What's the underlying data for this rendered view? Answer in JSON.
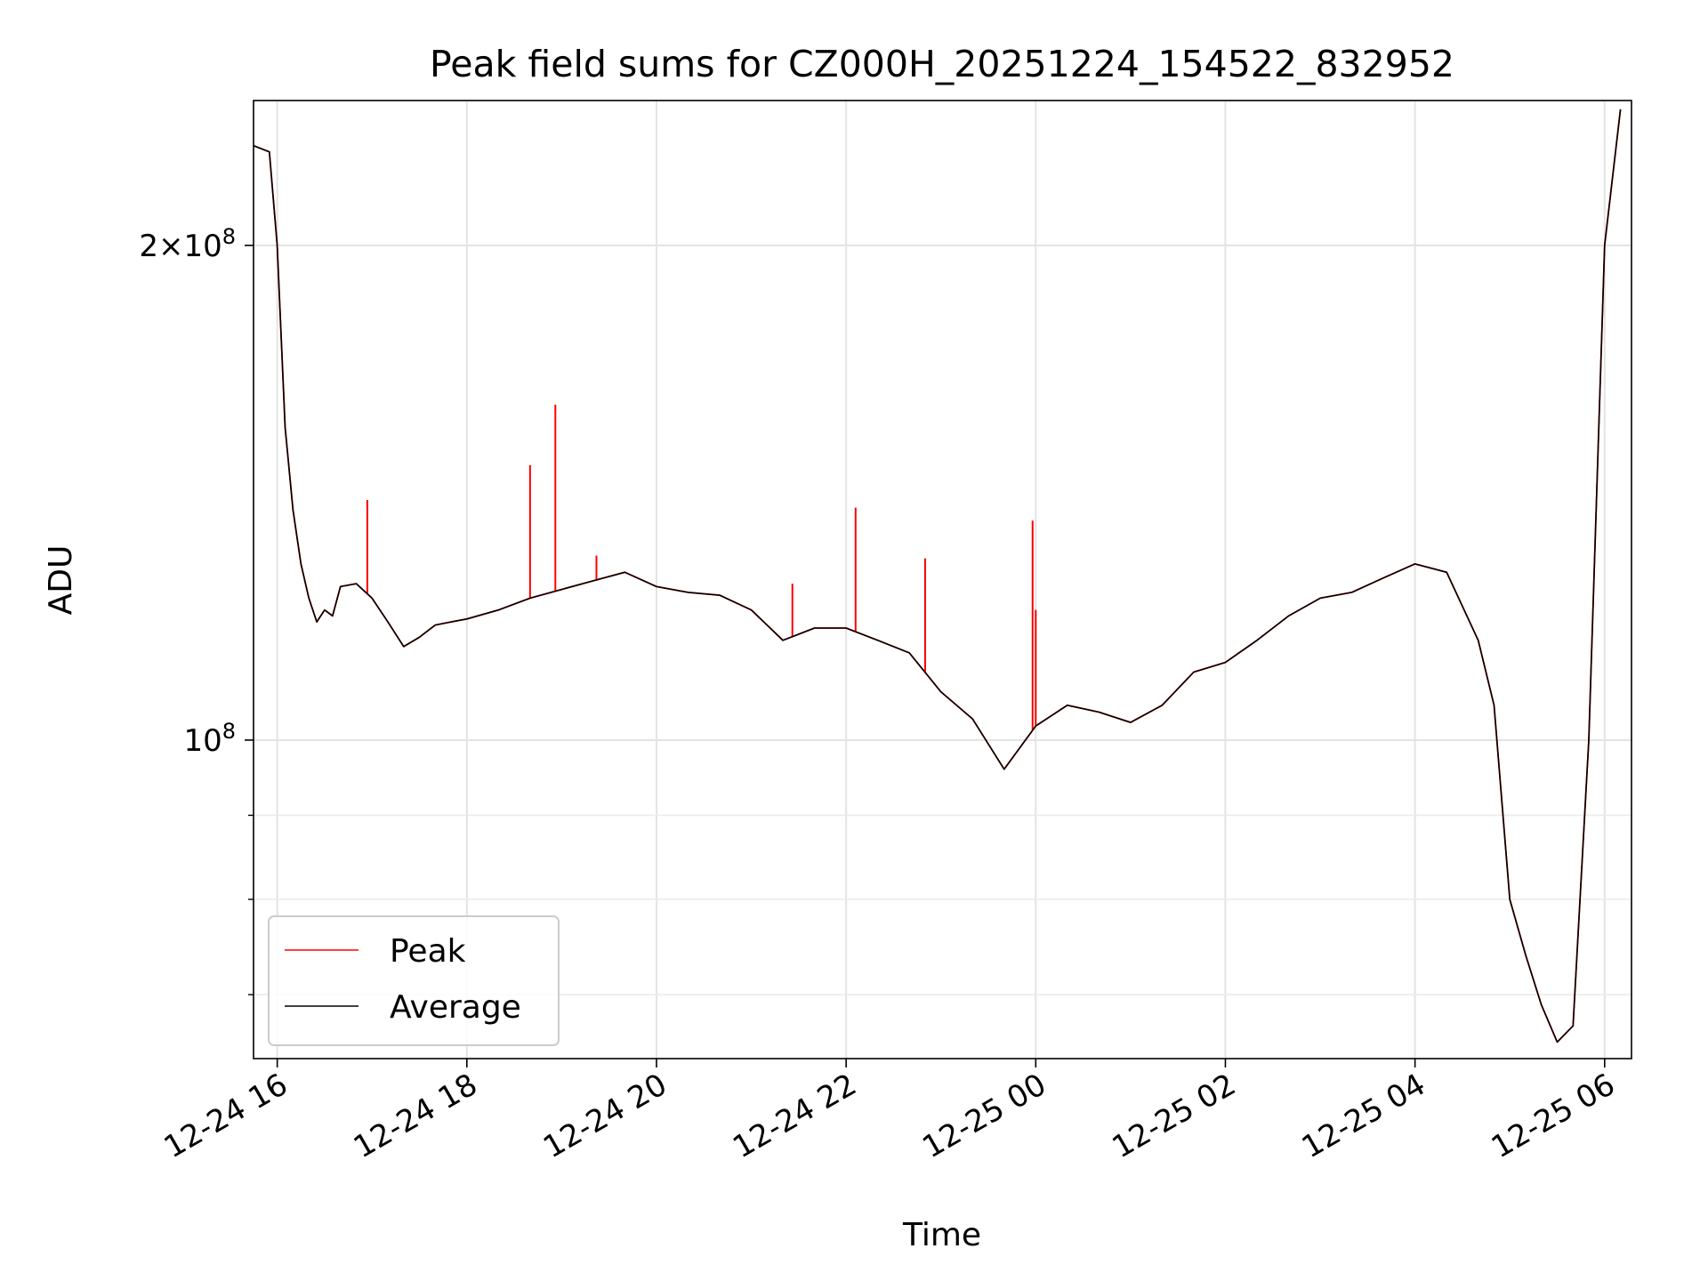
{
  "chart_data": {
    "type": "line",
    "title": "Peak field sums for CZ000H_20251224_154522_832952",
    "xlabel": "Time",
    "ylabel": "ADU",
    "y_scale": "log",
    "ylim": [
      64000000,
      245000000
    ],
    "xlim": [
      "2025-12-24 15:45",
      "2025-12-25 06:17"
    ],
    "grid": true,
    "legend_position": "lower-left",
    "x_ticks": [
      {
        "t": "2025-12-24 16:00",
        "label": "12-24 16"
      },
      {
        "t": "2025-12-24 18:00",
        "label": "12-24 18"
      },
      {
        "t": "2025-12-24 20:00",
        "label": "12-24 20"
      },
      {
        "t": "2025-12-24 22:00",
        "label": "12-24 22"
      },
      {
        "t": "2025-12-25 00:00",
        "label": "12-25 00"
      },
      {
        "t": "2025-12-25 02:00",
        "label": "12-25 02"
      },
      {
        "t": "2025-12-25 04:00",
        "label": "12-25 04"
      },
      {
        "t": "2025-12-25 06:00",
        "label": "12-25 06"
      }
    ],
    "y_ticks": [
      {
        "value": 100000000,
        "mantissa": "",
        "exponent": "8"
      },
      {
        "value": 200000000,
        "mantissa": "2",
        "exponent": "8"
      }
    ],
    "y_minor_ticks": [
      70000000,
      80000000,
      90000000
    ],
    "series": [
      {
        "name": "Peak",
        "color": "#ff0000",
        "data": [
          [
            "2025-12-24 15:45",
            230000000.0
          ],
          [
            "2025-12-24 15:55",
            228000000.0
          ],
          [
            "2025-12-24 16:00",
            200000000.0
          ],
          [
            "2025-12-24 16:05",
            155000000.0
          ],
          [
            "2025-12-24 16:10",
            138000000.0
          ],
          [
            "2025-12-24 16:15",
            128000000.0
          ],
          [
            "2025-12-24 16:20",
            122000000.0
          ],
          [
            "2025-12-24 16:25",
            118000000.0
          ],
          [
            "2025-12-24 16:30",
            120000000.0
          ],
          [
            "2025-12-24 16:35",
            119000000.0
          ],
          [
            "2025-12-24 16:40",
            124000000.0
          ],
          [
            "2025-12-24 16:50",
            124500000.0
          ],
          [
            "2025-12-24 17:00",
            122000000.0
          ],
          [
            "2025-12-24 17:10",
            118000000.0
          ],
          [
            "2025-12-24 17:20",
            114000000.0
          ],
          [
            "2025-12-24 17:30",
            115500000.0
          ],
          [
            "2025-12-24 17:40",
            117500000.0
          ],
          [
            "2025-12-24 17:50",
            118000000.0
          ],
          [
            "2025-12-24 18:00",
            118500000.0
          ],
          [
            "2025-12-24 18:20",
            120000000.0
          ],
          [
            "2025-12-24 18:40",
            122000000.0
          ],
          [
            "2025-12-24 19:00",
            123500000.0
          ],
          [
            "2025-12-24 19:20",
            125000000.0
          ],
          [
            "2025-12-24 19:40",
            126500000.0
          ],
          [
            "2025-12-24 20:00",
            124000000.0
          ],
          [
            "2025-12-24 20:20",
            123000000.0
          ],
          [
            "2025-12-24 20:40",
            122500000.0
          ],
          [
            "2025-12-24 21:00",
            120000000.0
          ],
          [
            "2025-12-24 21:20",
            115000000.0
          ],
          [
            "2025-12-24 21:40",
            117000000.0
          ],
          [
            "2025-12-24 22:00",
            117000000.0
          ],
          [
            "2025-12-24 22:20",
            115000000.0
          ],
          [
            "2025-12-24 22:40",
            113000000.0
          ],
          [
            "2025-12-24 23:00",
            107000000.0
          ],
          [
            "2025-12-24 23:20",
            103000000.0
          ],
          [
            "2025-12-24 23:40",
            96000000.0
          ],
          [
            "2025-12-25 00:00",
            102000000.0
          ],
          [
            "2025-12-25 00:20",
            105000000.0
          ],
          [
            "2025-12-25 00:40",
            104000000.0
          ],
          [
            "2025-12-25 01:00",
            102500000.0
          ],
          [
            "2025-12-25 01:20",
            105000000.0
          ],
          [
            "2025-12-25 01:40",
            110000000.0
          ],
          [
            "2025-12-25 02:00",
            111500000.0
          ],
          [
            "2025-12-25 02:20",
            115000000.0
          ],
          [
            "2025-12-25 02:40",
            119000000.0
          ],
          [
            "2025-12-25 03:00",
            122000000.0
          ],
          [
            "2025-12-25 03:20",
            123000000.0
          ],
          [
            "2025-12-25 03:40",
            125500000.0
          ],
          [
            "2025-12-25 04:00",
            128000000.0
          ],
          [
            "2025-12-25 04:20",
            126500000.0
          ],
          [
            "2025-12-25 04:40",
            115000000.0
          ],
          [
            "2025-12-25 04:50",
            105000000.0
          ],
          [
            "2025-12-25 05:00",
            80000000.0
          ],
          [
            "2025-12-25 05:10",
            74000000.0
          ],
          [
            "2025-12-25 05:20",
            69000000.0
          ],
          [
            "2025-12-25 05:30",
            65500000.0
          ],
          [
            "2025-12-25 05:40",
            67000000.0
          ],
          [
            "2025-12-25 05:50",
            100000000.0
          ],
          [
            "2025-12-25 06:00",
            200000000.0
          ],
          [
            "2025-12-25 06:10",
            242000000.0
          ]
        ],
        "spikes": [
          [
            "2025-12-24 16:57",
            140000000.0
          ],
          [
            "2025-12-24 18:40",
            147000000.0
          ],
          [
            "2025-12-24 18:56",
            160000000.0
          ],
          [
            "2025-12-24 19:22",
            129500000.0
          ],
          [
            "2025-12-24 21:26",
            124500000.0
          ],
          [
            "2025-12-24 22:06",
            138500000.0
          ],
          [
            "2025-12-24 22:50",
            129000000.0
          ],
          [
            "2025-12-24 23:58",
            136000000.0
          ],
          [
            "2025-12-25 00:00",
            120000000.0
          ]
        ]
      },
      {
        "name": "Average",
        "color": "#000000",
        "data": [
          [
            "2025-12-24 15:45",
            230000000.0
          ],
          [
            "2025-12-24 15:55",
            228000000.0
          ],
          [
            "2025-12-24 16:00",
            200000000.0
          ],
          [
            "2025-12-24 16:05",
            155000000.0
          ],
          [
            "2025-12-24 16:10",
            138000000.0
          ],
          [
            "2025-12-24 16:15",
            128000000.0
          ],
          [
            "2025-12-24 16:20",
            122000000.0
          ],
          [
            "2025-12-24 16:25",
            118000000.0
          ],
          [
            "2025-12-24 16:30",
            120000000.0
          ],
          [
            "2025-12-24 16:35",
            119000000.0
          ],
          [
            "2025-12-24 16:40",
            124000000.0
          ],
          [
            "2025-12-24 16:50",
            124500000.0
          ],
          [
            "2025-12-24 17:00",
            122000000.0
          ],
          [
            "2025-12-24 17:10",
            118000000.0
          ],
          [
            "2025-12-24 17:20",
            114000000.0
          ],
          [
            "2025-12-24 17:30",
            115500000.0
          ],
          [
            "2025-12-24 17:40",
            117500000.0
          ],
          [
            "2025-12-24 17:50",
            118000000.0
          ],
          [
            "2025-12-24 18:00",
            118500000.0
          ],
          [
            "2025-12-24 18:20",
            120000000.0
          ],
          [
            "2025-12-24 18:40",
            122000000.0
          ],
          [
            "2025-12-24 19:00",
            123500000.0
          ],
          [
            "2025-12-24 19:20",
            125000000.0
          ],
          [
            "2025-12-24 19:40",
            126500000.0
          ],
          [
            "2025-12-24 20:00",
            124000000.0
          ],
          [
            "2025-12-24 20:20",
            123000000.0
          ],
          [
            "2025-12-24 20:40",
            122500000.0
          ],
          [
            "2025-12-24 21:00",
            120000000.0
          ],
          [
            "2025-12-24 21:20",
            115000000.0
          ],
          [
            "2025-12-24 21:40",
            117000000.0
          ],
          [
            "2025-12-24 22:00",
            117000000.0
          ],
          [
            "2025-12-24 22:20",
            115000000.0
          ],
          [
            "2025-12-24 22:40",
            113000000.0
          ],
          [
            "2025-12-24 23:00",
            107000000.0
          ],
          [
            "2025-12-24 23:20",
            103000000.0
          ],
          [
            "2025-12-24 23:40",
            96000000.0
          ],
          [
            "2025-12-25 00:00",
            102000000.0
          ],
          [
            "2025-12-25 00:20",
            105000000.0
          ],
          [
            "2025-12-25 00:40",
            104000000.0
          ],
          [
            "2025-12-25 01:00",
            102500000.0
          ],
          [
            "2025-12-25 01:20",
            105000000.0
          ],
          [
            "2025-12-25 01:40",
            110000000.0
          ],
          [
            "2025-12-25 02:00",
            111500000.0
          ],
          [
            "2025-12-25 02:20",
            115000000.0
          ],
          [
            "2025-12-25 02:40",
            119000000.0
          ],
          [
            "2025-12-25 03:00",
            122000000.0
          ],
          [
            "2025-12-25 03:20",
            123000000.0
          ],
          [
            "2025-12-25 03:40",
            125500000.0
          ],
          [
            "2025-12-25 04:00",
            128000000.0
          ],
          [
            "2025-12-25 04:20",
            126500000.0
          ],
          [
            "2025-12-25 04:40",
            115000000.0
          ],
          [
            "2025-12-25 04:50",
            105000000.0
          ],
          [
            "2025-12-25 05:00",
            80000000.0
          ],
          [
            "2025-12-25 05:10",
            74000000.0
          ],
          [
            "2025-12-25 05:20",
            69000000.0
          ],
          [
            "2025-12-25 05:30",
            65500000.0
          ],
          [
            "2025-12-25 05:40",
            67000000.0
          ],
          [
            "2025-12-25 05:50",
            100000000.0
          ],
          [
            "2025-12-25 06:00",
            200000000.0
          ],
          [
            "2025-12-25 06:10",
            242000000.0
          ]
        ]
      }
    ]
  }
}
